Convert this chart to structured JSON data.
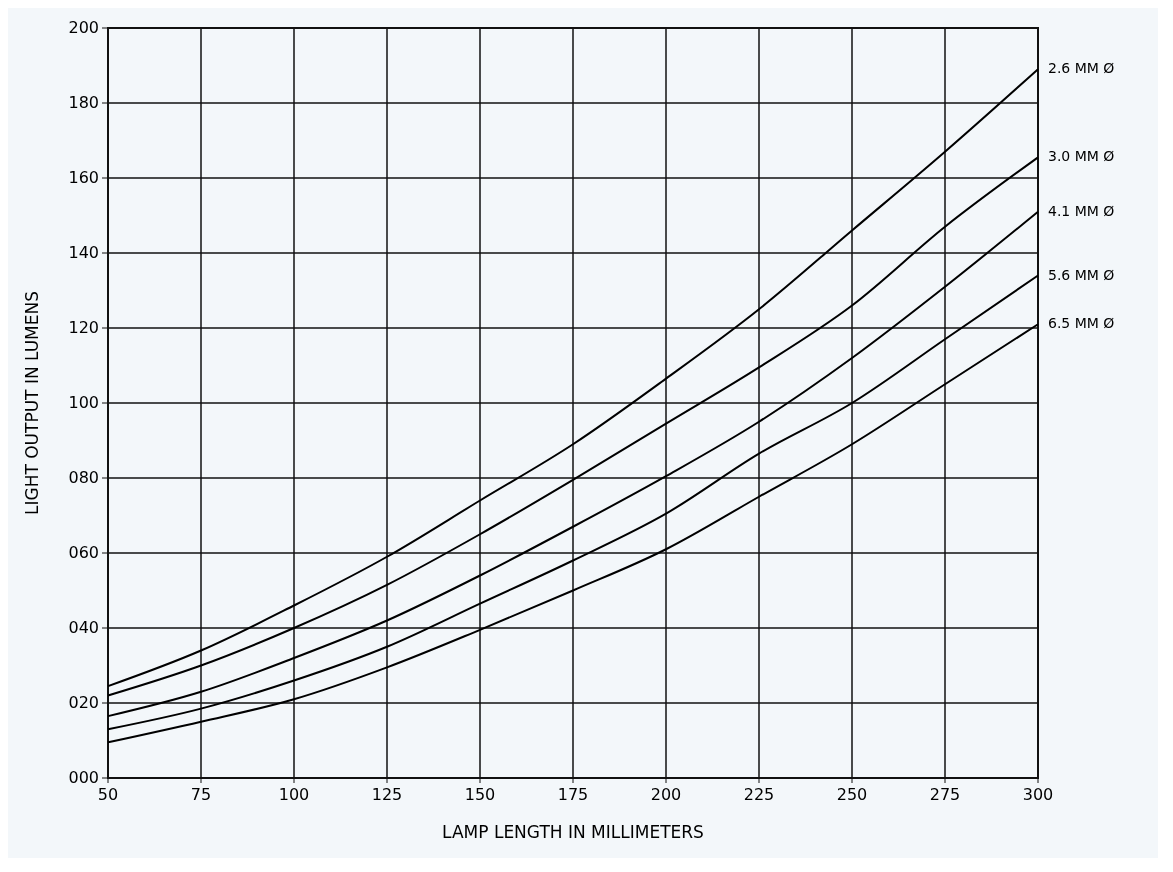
{
  "chart_data": {
    "type": "line",
    "xlabel": "LAMP LENGTH IN MILLIMETERS",
    "ylabel": "LIGHT OUTPUT IN LUMENS",
    "x": [
      50,
      75,
      100,
      125,
      150,
      175,
      200,
      225,
      250,
      275,
      300
    ],
    "series": [
      {
        "name": "2.6 MM Ø",
        "color": "#000000",
        "values": [
          24.5,
          34,
          46,
          59,
          74,
          89,
          106.5,
          125,
          146,
          167,
          189
        ]
      },
      {
        "name": "3.0 MM Ø",
        "color": "#000000",
        "values": [
          22,
          30,
          40,
          51.5,
          65,
          79.5,
          94.5,
          109.5,
          126,
          147,
          165.5
        ]
      },
      {
        "name": "4.1 MM Ø",
        "color": "#000000",
        "values": [
          16.5,
          23,
          32,
          42,
          54,
          67,
          80.5,
          95,
          112,
          131,
          151
        ]
      },
      {
        "name": "5.6 MM Ø",
        "color": "#000000",
        "values": [
          13,
          18.5,
          26,
          35,
          46.5,
          58,
          70.5,
          86.5,
          100,
          117,
          134
        ]
      },
      {
        "name": "6.5 MM Ø",
        "color": "#000000",
        "values": [
          9.5,
          15,
          21,
          29.5,
          39.5,
          50,
          61,
          75,
          89,
          105,
          121
        ]
      }
    ],
    "xlim": [
      50,
      300
    ],
    "xticks": [
      50,
      75,
      100,
      125,
      150,
      175,
      200,
      225,
      250,
      275,
      300
    ],
    "ylim": [
      0,
      200
    ],
    "yticks": [
      {
        "value": 0,
        "label": "000"
      },
      {
        "value": 20,
        "label": "020"
      },
      {
        "value": 40,
        "label": "040"
      },
      {
        "value": 60,
        "label": "060"
      },
      {
        "value": 80,
        "label": "080"
      },
      {
        "value": 100,
        "label": "100"
      },
      {
        "value": 120,
        "label": "120"
      },
      {
        "value": 140,
        "label": "140"
      },
      {
        "value": 160,
        "label": "160"
      },
      {
        "value": 180,
        "label": "180"
      },
      {
        "value": 200,
        "label": "200"
      }
    ],
    "grid": true,
    "legend": false,
    "marker": "none",
    "line_style": "solid"
  }
}
